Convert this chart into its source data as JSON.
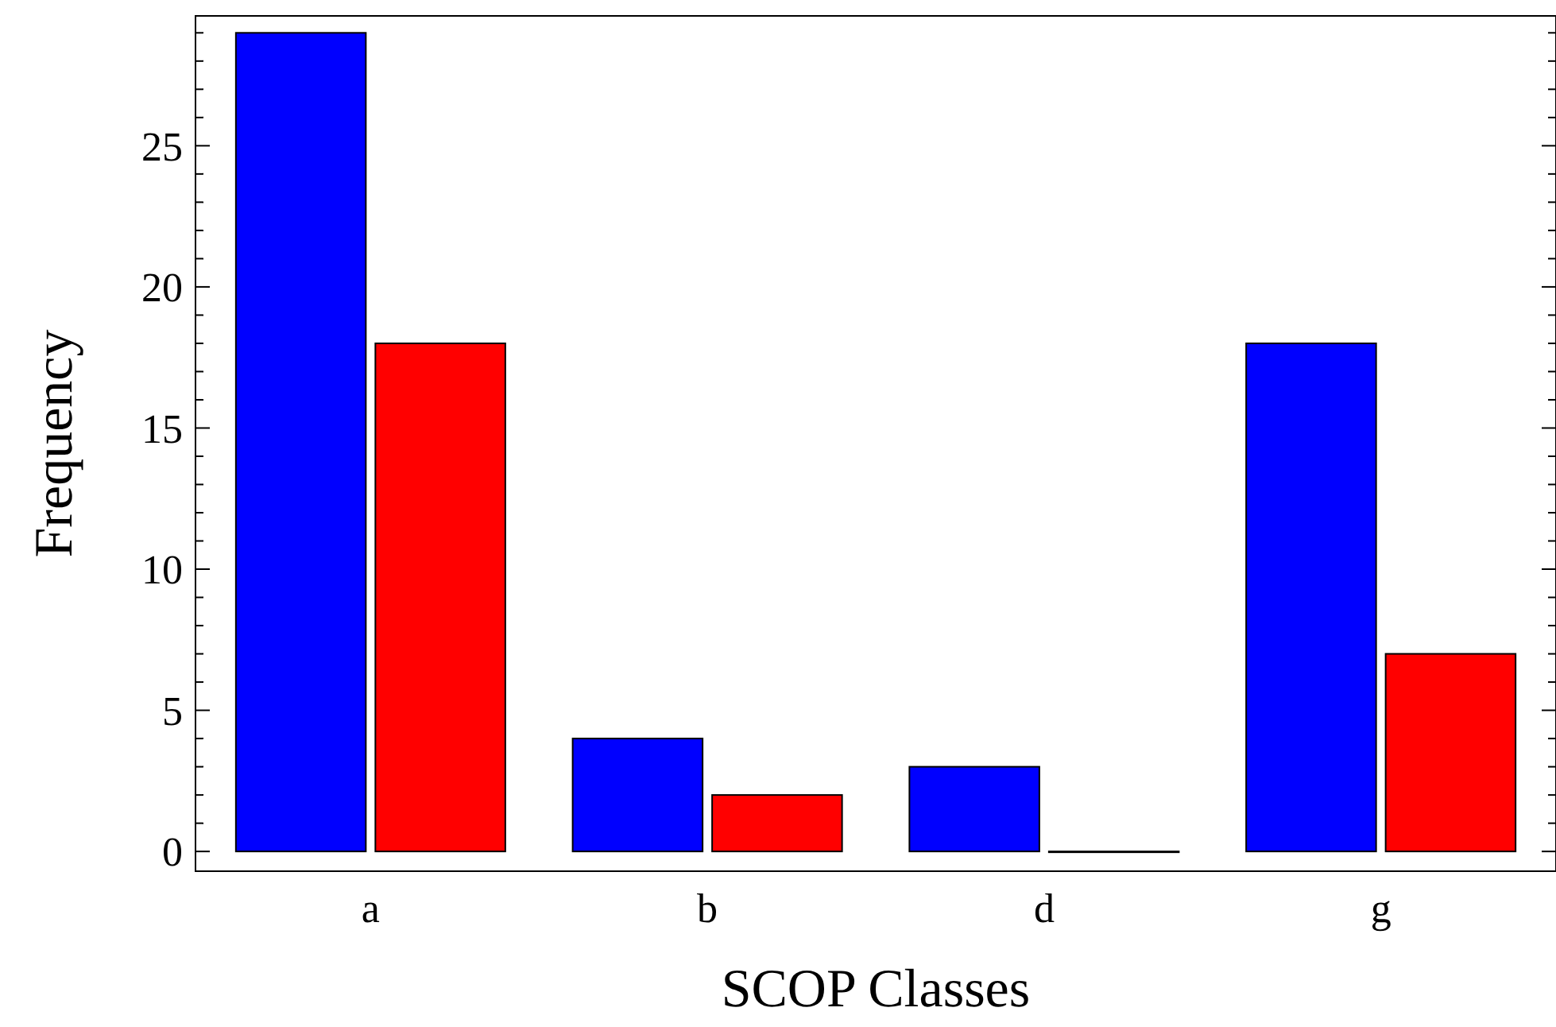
{
  "chart_data": {
    "type": "bar",
    "xlabel": "SCOP Classes",
    "ylabel": "Frequency",
    "categories": [
      "a",
      "b",
      "d",
      "g"
    ],
    "series": [
      {
        "color": "#0000ff",
        "values": [
          29,
          4,
          3,
          18
        ]
      },
      {
        "color": "#ff0000",
        "values": [
          18,
          2,
          0,
          7
        ]
      }
    ],
    "ylim": [
      -0.7,
      29.6
    ],
    "yticks": [
      0,
      5,
      10,
      15,
      20,
      25
    ],
    "grid": false
  }
}
